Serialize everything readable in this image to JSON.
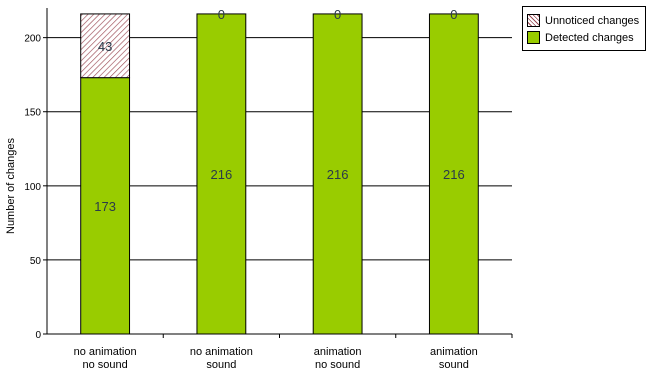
{
  "chart_data": {
    "type": "bar",
    "stacked": true,
    "categories": [
      [
        "no animation",
        "no sound"
      ],
      [
        "no animation",
        "sound"
      ],
      [
        "animation",
        "no sound"
      ],
      [
        "animation",
        "sound"
      ]
    ],
    "series": [
      {
        "name": "Detected changes",
        "values": [
          173,
          216,
          216,
          216
        ],
        "color": "#99cc00",
        "fill": "solid"
      },
      {
        "name": "Unnoticed changes",
        "values": [
          43,
          0,
          0,
          0
        ],
        "color": "#9b4a55",
        "fill": "diagonal-hatch"
      }
    ],
    "ylabel": "Number of changes",
    "yticks": [
      0,
      50,
      100,
      150,
      200
    ],
    "ylim": [
      0,
      220
    ],
    "grid": true,
    "legend_position": "top-right",
    "legend": [
      {
        "label": "Unnoticed changes",
        "icon": "hatched-swatch"
      },
      {
        "label": "Detected changes",
        "icon": "solid-green-swatch"
      }
    ]
  }
}
